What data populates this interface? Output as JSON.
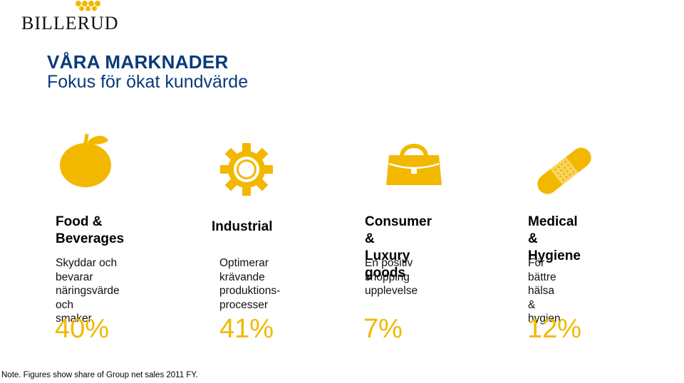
{
  "brand": {
    "name": "BILLERUD",
    "logo_icon": "crown-dots-logo"
  },
  "header": {
    "title": "VÅRA MARKNADER",
    "subtitle": "Fokus för ökat kundvärde"
  },
  "accent_color": "#f2b800",
  "title_color": "#0a3a7a",
  "markets": [
    {
      "icon": "apple-icon",
      "title": "Food &\nBeverages",
      "description": "Skyddar och bevarar\nnäringsvärde och\nsmaker",
      "share": "40%"
    },
    {
      "icon": "gear-icon",
      "title": "Industrial",
      "description": "Optimerar\nkrävande\nproduktions-\nprocesser",
      "share": "41%"
    },
    {
      "icon": "handbag-icon",
      "title": "Consumer &\nLuxury goods",
      "description": "En positiv shopping\nupplevelse",
      "share": "7%"
    },
    {
      "icon": "bandage-icon",
      "title": "Medical &\nHygiene",
      "description": "För bättre hälsa &\nhygien",
      "share": "12%"
    }
  ],
  "footer": {
    "note": "Note. Figures show share of Group net sales 2011 FY."
  }
}
